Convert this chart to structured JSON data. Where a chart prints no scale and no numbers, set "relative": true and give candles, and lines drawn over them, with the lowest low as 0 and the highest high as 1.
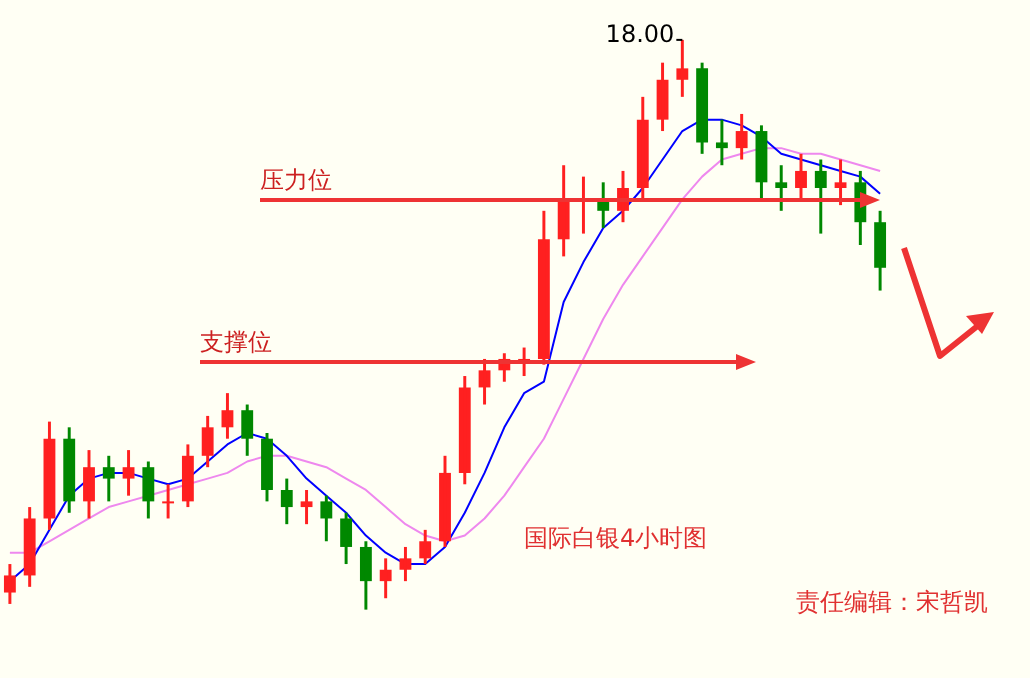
{
  "chart_data": {
    "type": "candlestick",
    "relative": true,
    "categories": [
      null,
      null,
      null,
      null,
      null,
      null,
      null,
      null,
      null,
      null,
      null,
      null,
      null,
      null,
      null,
      null,
      null,
      null,
      null,
      null,
      null,
      null,
      null,
      null,
      null,
      null,
      null,
      null,
      null,
      null,
      null,
      null,
      null,
      null,
      null,
      null,
      null,
      null,
      null,
      null,
      null,
      null,
      null,
      null,
      null
    ],
    "ohlc": [
      [
        0.03,
        0.08,
        0.01,
        0.06
      ],
      [
        0.06,
        0.18,
        0.04,
        0.16
      ],
      [
        0.16,
        0.33,
        0.14,
        0.3
      ],
      [
        0.3,
        0.32,
        0.17,
        0.19
      ],
      [
        0.19,
        0.28,
        0.16,
        0.25
      ],
      [
        0.25,
        0.27,
        0.19,
        0.23
      ],
      [
        0.23,
        0.28,
        0.2,
        0.25
      ],
      [
        0.25,
        0.26,
        0.16,
        0.19
      ],
      [
        0.19,
        0.22,
        0.16,
        0.19
      ],
      [
        0.19,
        0.29,
        0.18,
        0.27
      ],
      [
        0.27,
        0.34,
        0.25,
        0.32
      ],
      [
        0.32,
        0.38,
        0.3,
        0.35
      ],
      [
        0.35,
        0.36,
        0.27,
        0.3
      ],
      [
        0.3,
        0.31,
        0.19,
        0.21
      ],
      [
        0.21,
        0.23,
        0.15,
        0.18
      ],
      [
        0.18,
        0.21,
        0.15,
        0.19
      ],
      [
        0.19,
        0.2,
        0.12,
        0.16
      ],
      [
        0.16,
        0.17,
        0.08,
        0.11
      ],
      [
        0.11,
        0.12,
        0.0,
        0.05
      ],
      [
        0.05,
        0.09,
        0.02,
        0.07
      ],
      [
        0.07,
        0.11,
        0.05,
        0.09
      ],
      [
        0.09,
        0.14,
        0.08,
        0.12
      ],
      [
        0.12,
        0.27,
        0.11,
        0.24
      ],
      [
        0.24,
        0.41,
        0.22,
        0.39
      ],
      [
        0.39,
        0.44,
        0.36,
        0.42
      ],
      [
        0.42,
        0.45,
        0.4,
        0.44
      ],
      [
        0.44,
        0.46,
        0.41,
        0.44
      ],
      [
        0.44,
        0.7,
        0.43,
        0.65
      ],
      [
        0.65,
        0.78,
        0.62,
        0.72
      ],
      [
        0.72,
        0.76,
        0.66,
        0.72
      ],
      [
        0.72,
        0.75,
        0.67,
        0.7
      ],
      [
        0.7,
        0.77,
        0.68,
        0.74
      ],
      [
        0.74,
        0.9,
        0.72,
        0.86
      ],
      [
        0.86,
        0.96,
        0.84,
        0.93
      ],
      [
        0.93,
        1.0,
        0.9,
        0.95
      ],
      [
        0.95,
        0.96,
        0.8,
        0.82
      ],
      [
        0.82,
        0.86,
        0.78,
        0.81
      ],
      [
        0.81,
        0.87,
        0.79,
        0.84
      ],
      [
        0.84,
        0.85,
        0.72,
        0.75
      ],
      [
        0.75,
        0.78,
        0.7,
        0.74
      ],
      [
        0.74,
        0.8,
        0.72,
        0.77
      ],
      [
        0.77,
        0.79,
        0.66,
        0.74
      ],
      [
        0.74,
        0.79,
        0.71,
        0.75
      ],
      [
        0.75,
        0.77,
        0.64,
        0.68
      ],
      [
        0.68,
        0.7,
        0.56,
        0.6
      ]
    ],
    "series": [
      {
        "type": "line",
        "color": "#0000ff",
        "values": [
          0.05,
          0.08,
          0.14,
          0.2,
          0.23,
          0.24,
          0.24,
          0.23,
          0.22,
          0.23,
          0.26,
          0.29,
          0.31,
          0.3,
          0.27,
          0.23,
          0.2,
          0.17,
          0.13,
          0.1,
          0.08,
          0.08,
          0.11,
          0.17,
          0.24,
          0.32,
          0.38,
          0.4,
          0.54,
          0.61,
          0.67,
          0.7,
          0.74,
          0.79,
          0.84,
          0.86,
          0.86,
          0.85,
          0.83,
          0.8,
          0.79,
          0.78,
          0.77,
          0.76,
          0.73
        ]
      },
      {
        "type": "line",
        "color": "#ee88ee",
        "values": [
          0.1,
          0.1,
          0.12,
          0.14,
          0.16,
          0.18,
          0.19,
          0.2,
          0.21,
          0.22,
          0.23,
          0.24,
          0.26,
          0.27,
          0.27,
          0.26,
          0.25,
          0.23,
          0.21,
          0.18,
          0.15,
          0.13,
          0.12,
          0.13,
          0.16,
          0.2,
          0.25,
          0.3,
          0.37,
          0.44,
          0.51,
          0.57,
          0.62,
          0.67,
          0.72,
          0.76,
          0.79,
          0.8,
          0.81,
          0.81,
          0.8,
          0.8,
          0.79,
          0.78,
          0.77
        ]
      }
    ],
    "annotations": [
      "18.00",
      "压力位",
      "支撑位",
      "国际白银4小时图",
      "责任编辑：宋哲凯"
    ],
    "marker": "none",
    "legend": false
  }
}
